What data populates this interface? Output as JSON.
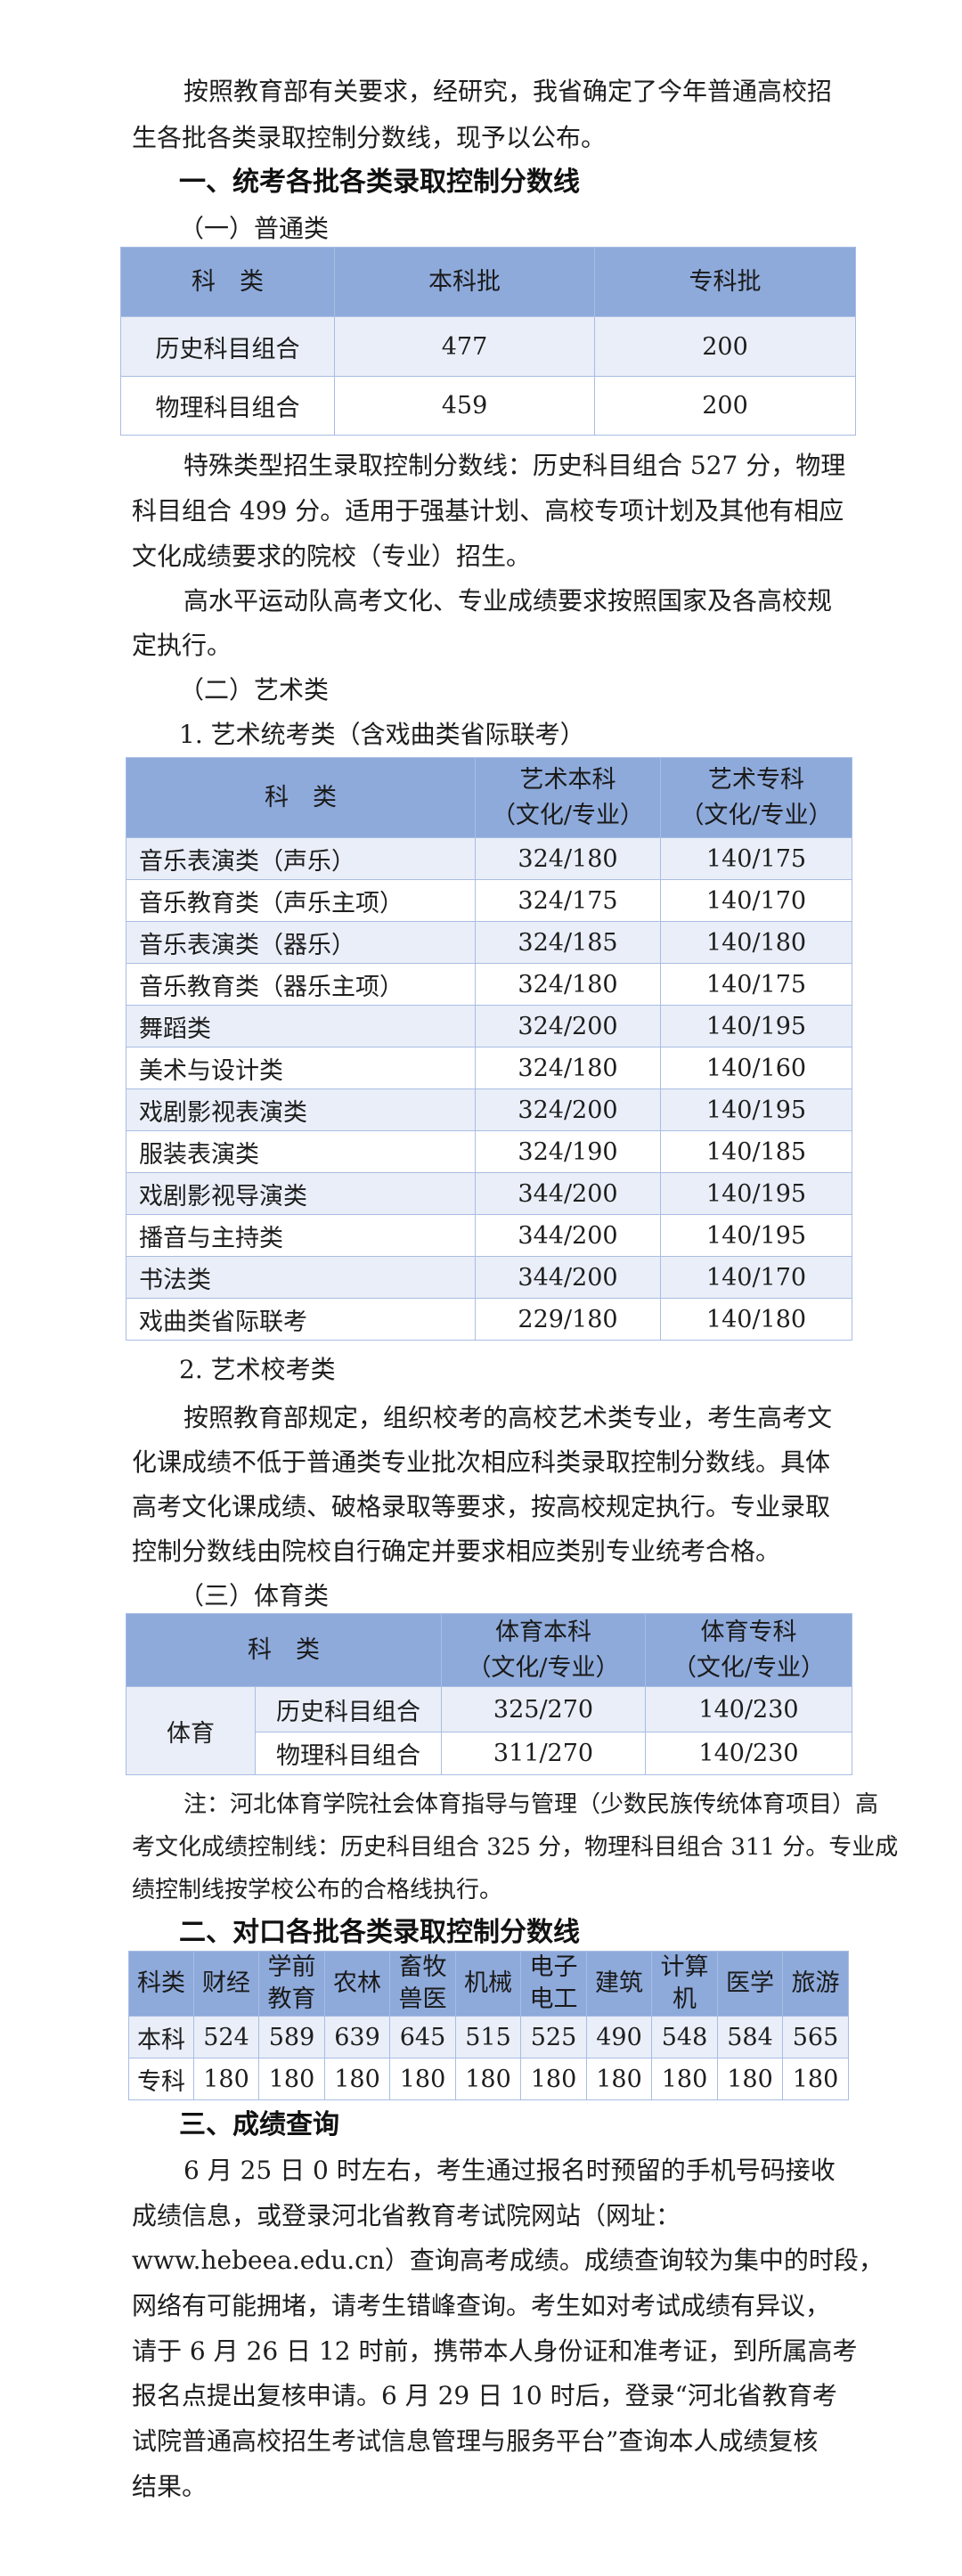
{
  "intro": {
    "lines": [
      "按照教育部有关要求，经研究，我省确定了今年普通高校招",
      "生各批各类录取控制分数线，现予以公布。"
    ]
  },
  "heading1": "一、统考各批各类录取控制分数线",
  "sub1": "（一）普通类",
  "table_general": {
    "headers": [
      [
        "科　类"
      ],
      [
        "本科批"
      ],
      [
        "专科批"
      ]
    ],
    "rows": [
      [
        "历史科目组合",
        "477",
        "200"
      ],
      [
        "物理科目组合",
        "459",
        "200"
      ]
    ]
  },
  "special": {
    "lines": [
      "特殊类型招生录取控制分数线：历史科目组合 527 分，物理",
      "科目组合 499 分。适用于强基计划、高校专项计划及其他有相应",
      "文化成绩要求的院校（专业）招生。"
    ]
  },
  "sports_team": {
    "lines": [
      "高水平运动队高考文化、专业成绩要求按照国家及各高校规",
      "定执行。"
    ]
  },
  "sub2": "（二）艺术类",
  "art_sub1": "1. 艺术统考类（含戏曲类省际联考）",
  "table_art": {
    "headers": [
      [
        "科　类"
      ],
      [
        "艺术本科",
        "（文化/专业）"
      ],
      [
        "艺术专科",
        "（文化/专业）"
      ]
    ],
    "rows": [
      [
        "音乐表演类（声乐）",
        "324/180",
        "140/175"
      ],
      [
        "音乐教育类（声乐主项）",
        "324/175",
        "140/170"
      ],
      [
        "音乐表演类（器乐）",
        "324/185",
        "140/180"
      ],
      [
        "音乐教育类（器乐主项）",
        "324/180",
        "140/175"
      ],
      [
        "舞蹈类",
        "324/200",
        "140/195"
      ],
      [
        "美术与设计类",
        "324/180",
        "140/160"
      ],
      [
        "戏剧影视表演类",
        "324/200",
        "140/195"
      ],
      [
        "服装表演类",
        "324/190",
        "140/185"
      ],
      [
        "戏剧影视导演类",
        "344/200",
        "140/195"
      ],
      [
        "播音与主持类",
        "344/200",
        "140/195"
      ],
      [
        "书法类",
        "344/200",
        "140/170"
      ],
      [
        "戏曲类省际联考",
        "229/180",
        "140/180"
      ]
    ]
  },
  "art_sub2": "2. 艺术校考类",
  "art_school": {
    "lines": [
      "按照教育部规定，组织校考的高校艺术类专业，考生高考文",
      "化课成绩不低于普通类专业批次相应科类录取控制分数线。具体",
      "高考文化课成绩、破格录取等要求，按高校规定执行。专业录取",
      "控制分数线由院校自行确定并要求相应类别专业统考合格。"
    ]
  },
  "sub3": "（三）体育类",
  "table_pe": {
    "headers": [
      [
        "科　类"
      ],
      [
        "体育本科",
        "（文化/专业）"
      ],
      [
        "体育专科",
        "（文化/专业）"
      ]
    ],
    "group": "体育",
    "rows": [
      [
        "历史科目组合",
        "325/270",
        "140/230"
      ],
      [
        "物理科目组合",
        "311/270",
        "140/230"
      ]
    ]
  },
  "note": {
    "lines": [
      "注：河北体育学院社会体育指导与管理（少数民族传统体育项目）高",
      "考文化成绩控制线：历史科目组合 325 分，物理科目组合 311 分。专业成",
      "绩控制线按学校公布的合格线执行。"
    ]
  },
  "heading2": "二、对口各批各类录取控制分数线",
  "table_vocational": {
    "headers": [
      [
        "科类"
      ],
      [
        "财经"
      ],
      [
        "学前",
        "教育"
      ],
      [
        "农林"
      ],
      [
        "畜牧",
        "兽医"
      ],
      [
        "机械"
      ],
      [
        "电子",
        "电工"
      ],
      [
        "建筑"
      ],
      [
        "计算",
        "机"
      ],
      [
        "医学"
      ],
      [
        "旅游"
      ]
    ],
    "rows": [
      [
        "本科",
        "524",
        "589",
        "639",
        "645",
        "515",
        "525",
        "490",
        "548",
        "584",
        "565"
      ],
      [
        "专科",
        "180",
        "180",
        "180",
        "180",
        "180",
        "180",
        "180",
        "180",
        "180",
        "180"
      ]
    ]
  },
  "heading3": "三、成绩查询",
  "query": {
    "lines": [
      "6 月 25 日 0 时左右，考生通过报名时预留的手机号码接收",
      "成绩信息，或登录河北省教育考试院网站（网址：",
      "www.hebeea.edu.cn）查询高考成绩。成绩查询较为集中的时段，",
      "网络有可能拥堵，请考生错峰查询。考生如对考试成绩有异议，",
      "请于 6 月 26 日 12 时前，携带本人身份证和准考证，到所属高考",
      "报名点提出复核申请。6 月 29 日 10 时后，登录“河北省教育考",
      "试院普通高校招生考试信息管理与服务平台”查询本人成绩复核",
      "结果。"
    ]
  },
  "colors": {
    "table_header": "#8eaadb",
    "table_row_alt": "#e9eef8",
    "table_border": "#a9bde3"
  }
}
